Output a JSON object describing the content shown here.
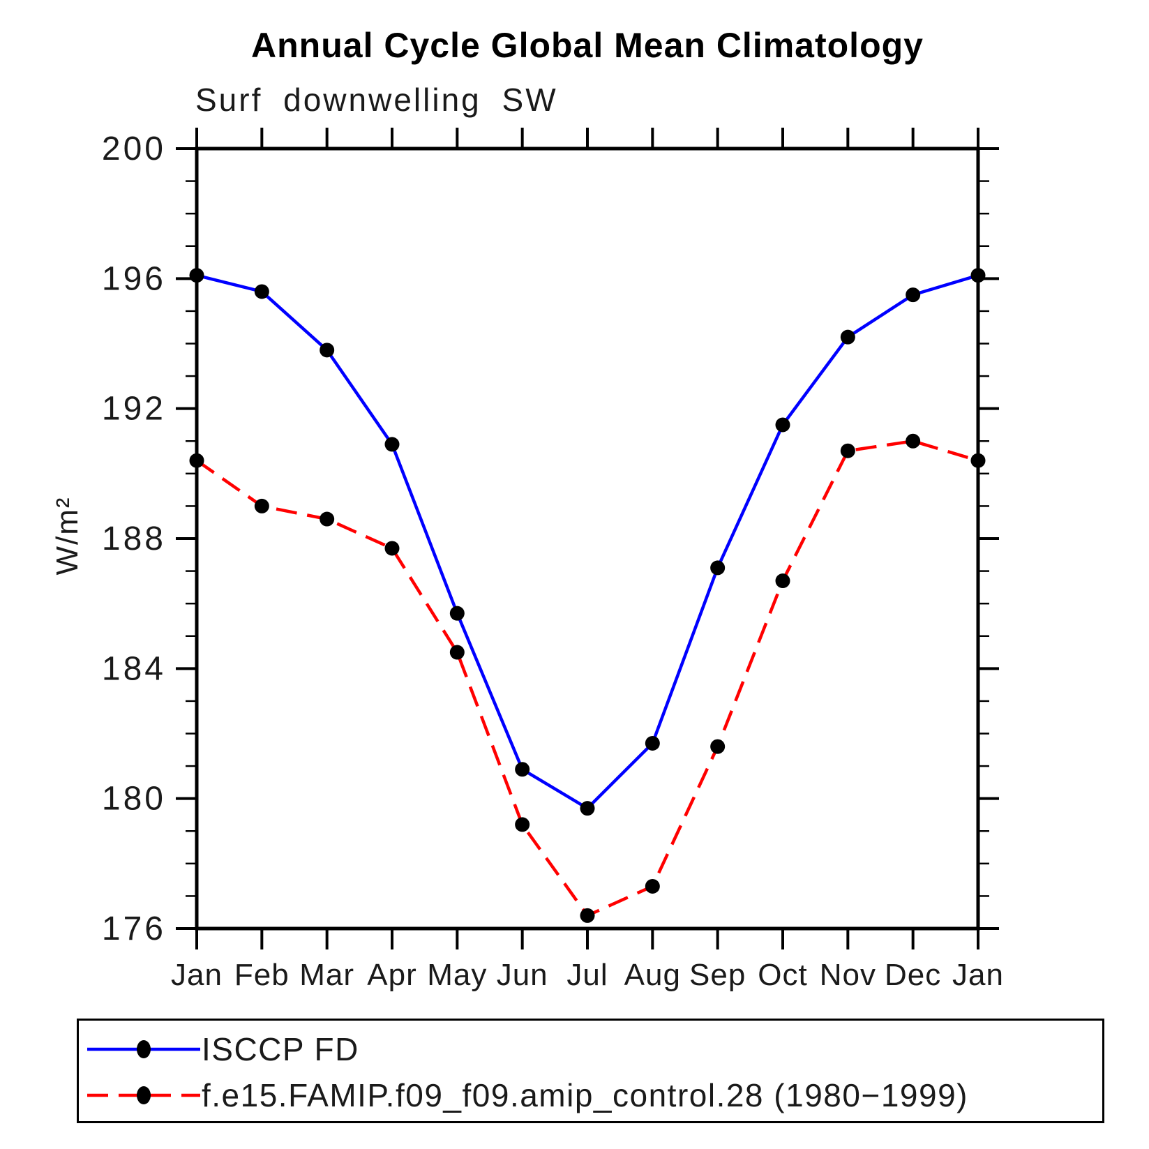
{
  "chart_data": {
    "type": "line",
    "title": "Annual Cycle Global Mean Climatology",
    "subtitle": "Surf downwelling SW",
    "ylabel": "W/m²",
    "xlabel": "",
    "categories": [
      "Jan",
      "Feb",
      "Mar",
      "Apr",
      "May",
      "Jun",
      "Jul",
      "Aug",
      "Sep",
      "Oct",
      "Nov",
      "Dec",
      "Jan"
    ],
    "ylim": [
      176,
      200
    ],
    "ytick_step_major": 4,
    "ytick_step_minor": 1,
    "ytick_labels": [
      "176",
      "180",
      "184",
      "188",
      "192",
      "196",
      "200"
    ],
    "grid": false,
    "legend_position": "bottom-left-box",
    "frame_color": "#000000",
    "marker_color": "#000000",
    "series": [
      {
        "name": "ISCCP FD",
        "color": "#0000ff",
        "line_style": "solid",
        "marker": "filled-circle",
        "values": [
          196.1,
          195.6,
          193.8,
          190.9,
          185.7,
          180.9,
          179.7,
          181.7,
          187.1,
          191.5,
          194.2,
          195.5,
          196.1
        ]
      },
      {
        "name": "f.e15.FAMIP.f09_f09.amip_control.28 (1980−1999)",
        "color": "#ff0000",
        "line_style": "dashed",
        "marker": "filled-circle",
        "values": [
          190.4,
          189.0,
          188.6,
          187.7,
          184.5,
          179.2,
          176.4,
          177.3,
          181.6,
          186.7,
          190.7,
          191.0,
          190.4
        ]
      }
    ]
  }
}
